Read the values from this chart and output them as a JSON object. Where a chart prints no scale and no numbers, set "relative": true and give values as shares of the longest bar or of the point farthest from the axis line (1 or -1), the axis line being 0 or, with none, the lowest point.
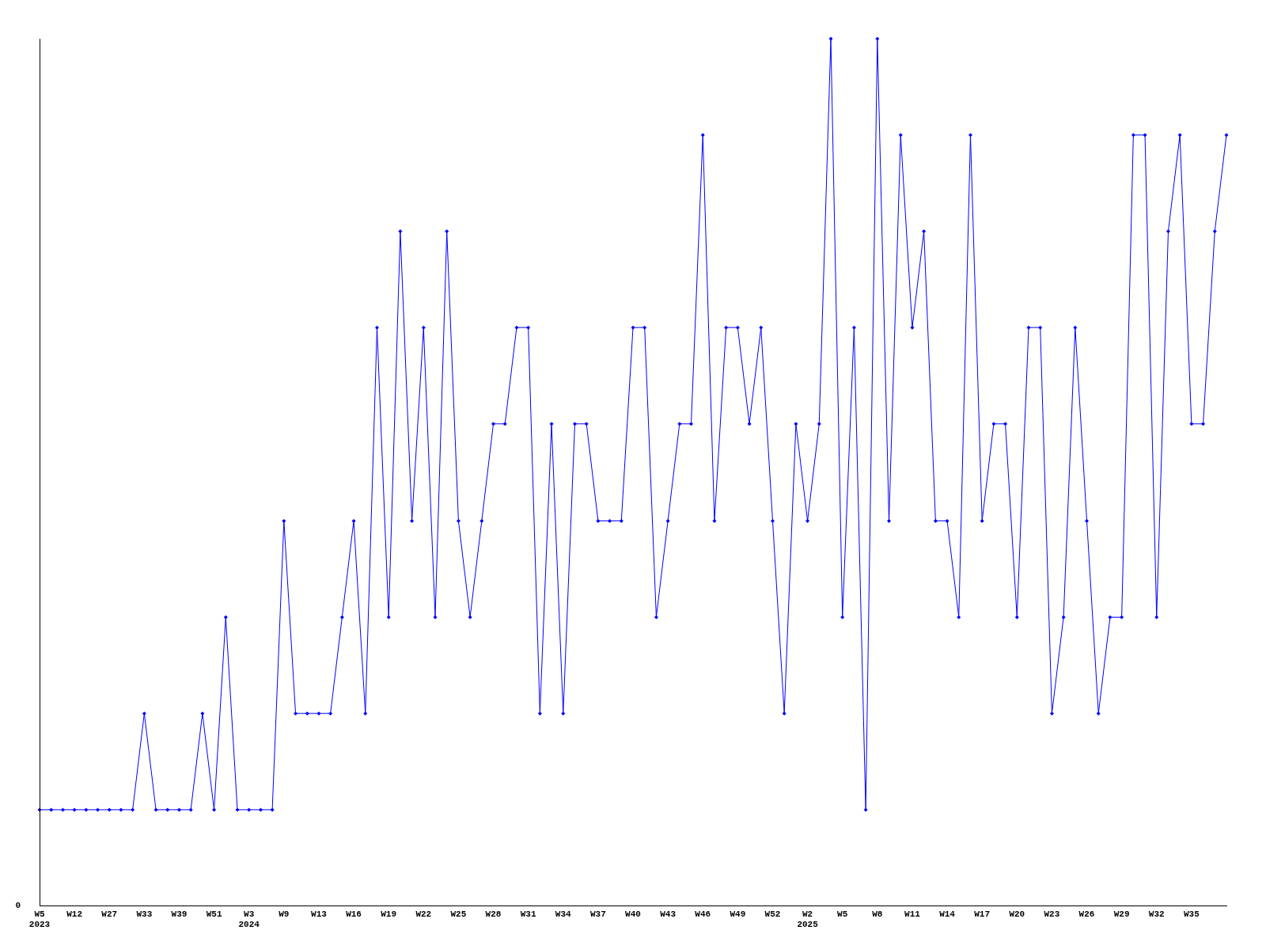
{
  "chart_data": {
    "type": "line",
    "relative": true,
    "grid": false,
    "legend": false,
    "marker": "diamond",
    "line_style": "solid",
    "annotations": [
      "0"
    ],
    "categories": [
      "W5\n2023",
      null,
      null,
      "W12",
      null,
      null,
      "W27",
      null,
      null,
      "W33",
      null,
      null,
      "W39",
      null,
      null,
      "W51",
      null,
      null,
      "W3\n2024",
      null,
      null,
      "W9",
      null,
      null,
      "W13",
      null,
      null,
      "W16",
      null,
      null,
      "W19",
      null,
      null,
      "W22",
      null,
      null,
      "W25",
      null,
      null,
      "W28",
      null,
      null,
      "W31",
      null,
      null,
      "W34",
      null,
      null,
      "W37",
      null,
      null,
      "W40",
      null,
      null,
      "W43",
      null,
      null,
      "W46",
      null,
      null,
      "W49",
      null,
      null,
      "W52",
      null,
      null,
      "W2\n2025",
      null,
      null,
      "W5",
      null,
      null,
      "W8",
      null,
      null,
      "W11",
      null,
      null,
      "W14",
      null,
      null,
      "W17",
      null,
      null,
      "W20",
      null,
      null,
      "W23",
      null,
      null,
      "W26",
      null,
      null,
      "W29",
      null,
      null,
      "W32",
      null,
      null,
      "W35",
      null,
      null,
      null
    ],
    "series": [
      {
        "color": "#0000ff",
        "values": [
          0.111,
          0.111,
          0.111,
          0.111,
          0.111,
          0.111,
          0.111,
          0.111,
          0.111,
          0.222,
          0.111,
          0.111,
          0.111,
          0.111,
          0.222,
          0.111,
          0.333,
          0.111,
          0.111,
          0.111,
          0.111,
          0.444,
          0.222,
          0.222,
          0.222,
          0.222,
          0.333,
          0.444,
          0.222,
          0.667,
          0.333,
          0.778,
          0.444,
          0.667,
          0.333,
          0.778,
          0.444,
          0.333,
          0.444,
          0.556,
          0.556,
          0.667,
          0.667,
          0.222,
          0.556,
          0.222,
          0.556,
          0.556,
          0.444,
          0.444,
          0.444,
          0.667,
          0.667,
          0.333,
          0.444,
          0.556,
          0.556,
          0.889,
          0.444,
          0.667,
          0.667,
          0.556,
          0.667,
          0.444,
          0.222,
          0.556,
          0.444,
          0.556,
          1,
          0.333,
          0.667,
          0.111,
          1,
          0.444,
          0.889,
          0.667,
          0.778,
          0.444,
          0.444,
          0.333,
          0.889,
          0.444,
          0.556,
          0.556,
          0.333,
          0.667,
          0.667,
          0.222,
          0.333,
          0.667,
          0.444,
          0.222,
          0.333,
          0.333,
          0.889,
          0.889,
          0.333,
          0.778,
          0.889,
          0.556,
          0.556,
          0.778,
          0.889
        ]
      }
    ]
  }
}
